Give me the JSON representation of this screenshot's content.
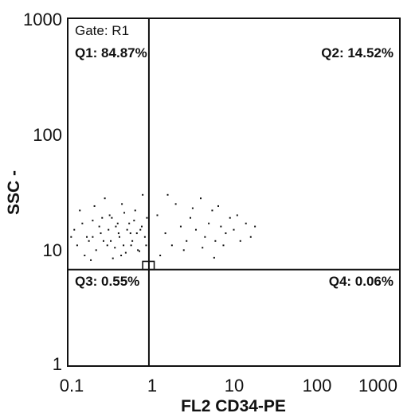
{
  "chart_data": {
    "type": "scatter",
    "title": "",
    "xlabel": "FL2  CD34-PE",
    "ylabel": "SSC  -",
    "xscale": "log",
    "yscale": "log",
    "xlim": [
      0.1,
      1000
    ],
    "ylim": [
      1,
      1000
    ],
    "x_ticks": [
      0.1,
      1,
      10,
      100,
      1000
    ],
    "x_tick_labels": [
      "0.1",
      "1",
      "10",
      "100",
      "1000"
    ],
    "y_ticks": [
      1,
      10,
      100,
      1000
    ],
    "y_tick_labels": [
      "1",
      "10",
      "100",
      "1000"
    ],
    "grid": false,
    "legend": "none",
    "point_color": "#111111",
    "gate_label": "Gate: R1",
    "quadrant_divider": {
      "x": 0.95,
      "y": 6.8
    },
    "quadrants": [
      {
        "name": "Q1",
        "label": "Q1: 84.87%",
        "percent": 84.87
      },
      {
        "name": "Q2",
        "label": "Q2: 14.52%",
        "percent": 14.52
      },
      {
        "name": "Q3",
        "label": "Q3: 0.55%",
        "percent": 0.55
      },
      {
        "name": "Q4",
        "label": "Q4: 0.06%",
        "percent": 0.06
      }
    ],
    "marker_box": {
      "x_range": [
        0.8,
        1.1
      ],
      "y_range": [
        6.8,
        8.0
      ]
    },
    "points": [
      [
        0.12,
        15
      ],
      [
        0.14,
        22
      ],
      [
        0.16,
        9
      ],
      [
        0.18,
        12
      ],
      [
        0.2,
        18
      ],
      [
        0.22,
        10
      ],
      [
        0.25,
        14
      ],
      [
        0.28,
        28
      ],
      [
        0.3,
        11
      ],
      [
        0.32,
        20
      ],
      [
        0.35,
        8.5
      ],
      [
        0.38,
        16
      ],
      [
        0.42,
        13
      ],
      [
        0.45,
        25
      ],
      [
        0.5,
        9.5
      ],
      [
        0.55,
        17
      ],
      [
        0.6,
        12
      ],
      [
        0.65,
        22
      ],
      [
        0.7,
        10
      ],
      [
        0.75,
        15
      ],
      [
        0.8,
        30
      ],
      [
        0.85,
        13
      ],
      [
        0.9,
        19
      ],
      [
        0.13,
        11
      ],
      [
        0.15,
        17
      ],
      [
        0.17,
        13
      ],
      [
        0.19,
        8.2
      ],
      [
        0.21,
        24
      ],
      [
        0.24,
        16
      ],
      [
        0.27,
        12
      ],
      [
        0.31,
        15
      ],
      [
        0.34,
        19
      ],
      [
        0.37,
        10.5
      ],
      [
        0.41,
        14
      ],
      [
        0.44,
        9
      ],
      [
        0.48,
        21
      ],
      [
        0.52,
        15
      ],
      [
        0.58,
        11
      ],
      [
        0.63,
        18
      ],
      [
        0.68,
        14
      ],
      [
        0.73,
        9.8
      ],
      [
        0.78,
        16
      ],
      [
        0.88,
        11
      ],
      [
        0.11,
        13
      ],
      [
        0.2,
        13
      ],
      [
        0.26,
        19
      ],
      [
        0.33,
        12
      ],
      [
        0.4,
        17
      ],
      [
        0.47,
        11
      ],
      [
        0.57,
        14
      ],
      [
        1.2,
        20
      ],
      [
        1.5,
        14
      ],
      [
        1.8,
        11
      ],
      [
        2.0,
        25
      ],
      [
        2.3,
        16
      ],
      [
        2.7,
        12
      ],
      [
        3.0,
        19
      ],
      [
        3.5,
        15
      ],
      [
        4.0,
        28
      ],
      [
        4.5,
        13
      ],
      [
        5.0,
        17
      ],
      [
        5.5,
        22
      ],
      [
        6.0,
        12
      ],
      [
        7.0,
        16
      ],
      [
        8.0,
        14
      ],
      [
        9.0,
        19
      ],
      [
        10.0,
        15
      ],
      [
        12.0,
        12
      ],
      [
        14.0,
        17
      ],
      [
        16.0,
        13
      ],
      [
        18.0,
        16
      ],
      [
        1.3,
        9
      ],
      [
        1.6,
        30
      ],
      [
        2.5,
        10
      ],
      [
        3.2,
        23
      ],
      [
        4.2,
        10.5
      ],
      [
        5.8,
        8.6
      ],
      [
        6.5,
        24
      ],
      [
        7.5,
        11
      ],
      [
        11.0,
        20
      ]
    ]
  }
}
